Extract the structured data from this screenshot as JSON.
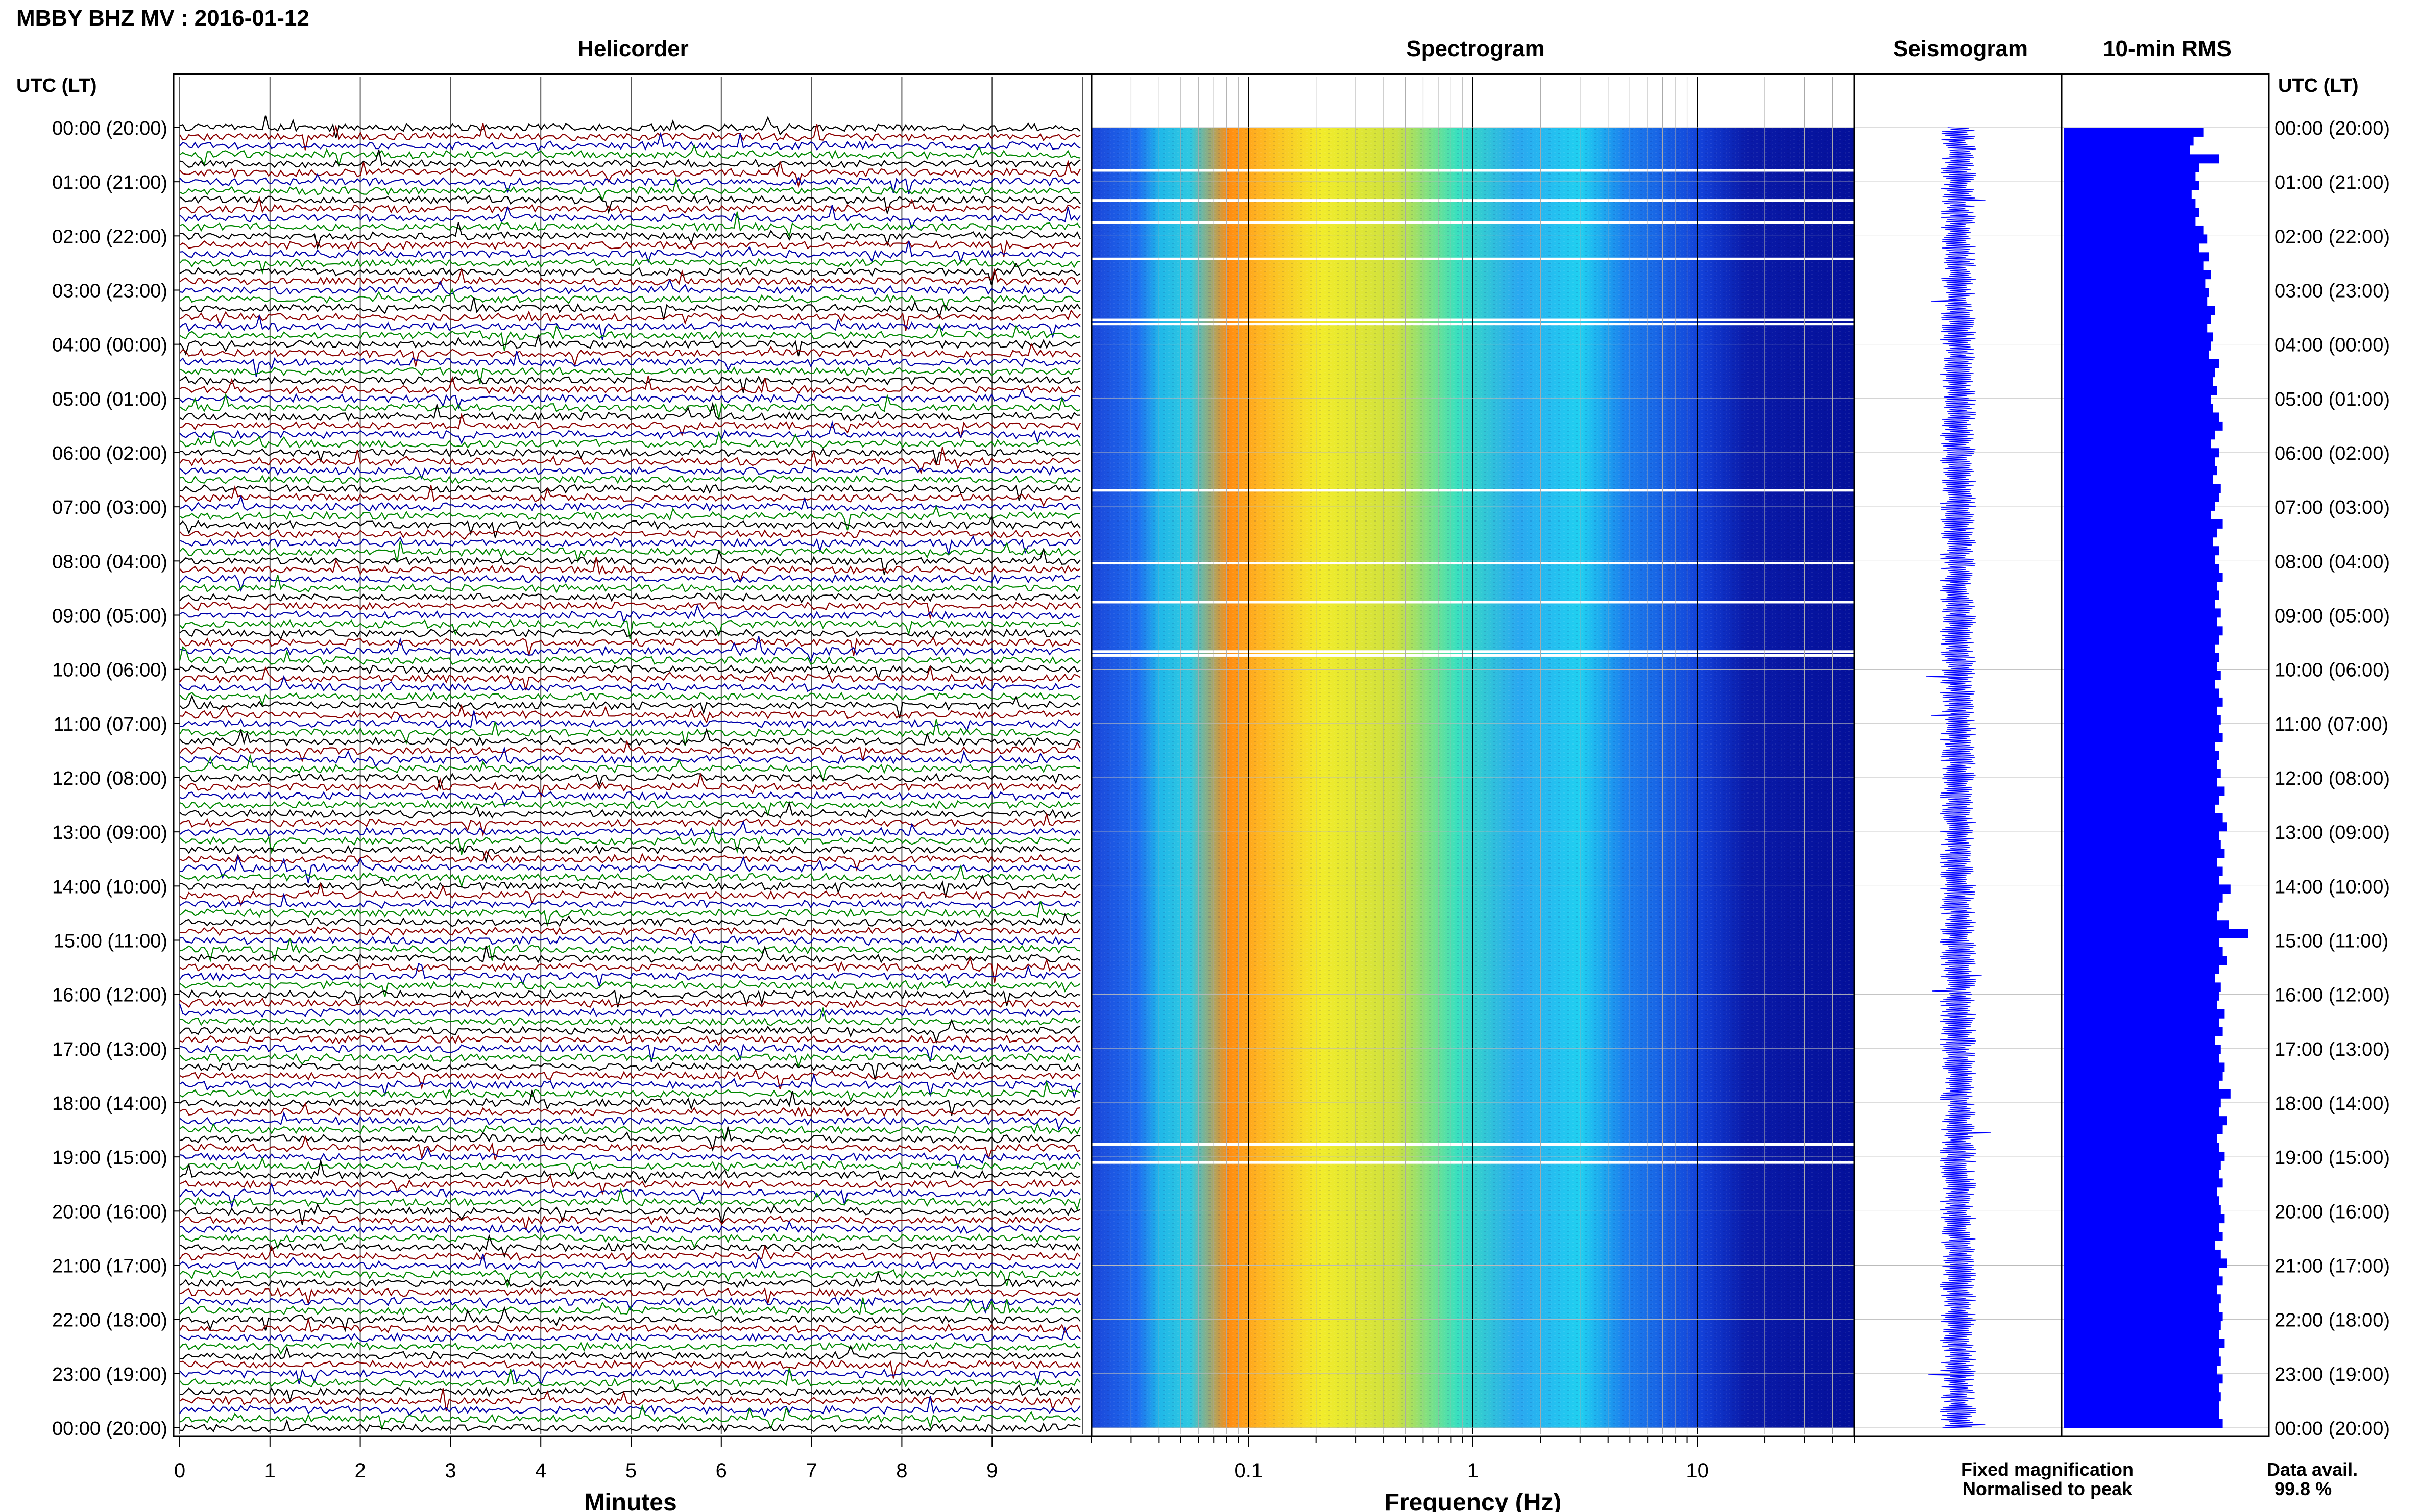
{
  "header": {
    "title": "MBBY BHZ MV : 2016-01-12",
    "utc_label": "UTC (LT)",
    "utc_label_right": "UTC (LT)"
  },
  "panels": {
    "helicorder": "Helicorder",
    "spectrogram": "Spectrogram",
    "seismogram": "Seismogram",
    "rms": "10-min RMS"
  },
  "legend": {
    "fixed": "Fixed magnification",
    "normalised": "Normalised to peak",
    "fixed_color": "#0000ff",
    "normalised_color": "#ff0000"
  },
  "data_avail": {
    "label": "Data avail.",
    "value": "99.8 %"
  },
  "colors": {
    "trace_cycle": [
      "#000000",
      "#8b0000",
      "#0000aa",
      "#008800"
    ],
    "seismogram": "#0000ff",
    "rms_bar": "#0000ff",
    "grid": "#999999"
  },
  "chart_data": [
    {
      "type": "line",
      "name": "helicorder",
      "title": "Helicorder",
      "xlabel": "Minutes",
      "x_ticks": [
        "0",
        "1",
        "2",
        "3",
        "4",
        "5",
        "6",
        "7",
        "8",
        "9"
      ],
      "xlim": [
        0,
        10
      ],
      "y_ticks": [
        "00:00 (20:00)",
        "01:00 (21:00)",
        "02:00 (22:00)",
        "03:00 (23:00)",
        "04:00 (00:00)",
        "05:00 (01:00)",
        "06:00 (02:00)",
        "07:00 (03:00)",
        "08:00 (04:00)",
        "09:00 (05:00)",
        "10:00 (06:00)",
        "11:00 (07:00)",
        "12:00 (08:00)",
        "13:00 (09:00)",
        "14:00 (10:00)",
        "15:00 (11:00)",
        "16:00 (12:00)",
        "17:00 (13:00)",
        "18:00 (14:00)",
        "19:00 (15:00)",
        "20:00 (16:00)",
        "21:00 (17:00)",
        "22:00 (18:00)",
        "23:00 (19:00)",
        "00:00 (20:00)"
      ],
      "lines_per_hour": 6
    },
    {
      "type": "heatmap",
      "name": "spectrogram",
      "title": "Spectrogram",
      "xlabel": "Frequency (Hz)",
      "x_scale": "log",
      "xlim": [
        0.02,
        50
      ],
      "x_ticks": [
        "0.1",
        "1",
        "10"
      ],
      "x_tick_values": [
        0.1,
        1,
        10
      ]
    },
    {
      "type": "line",
      "name": "seismogram",
      "title": "Seismogram"
    },
    {
      "type": "bar",
      "name": "rms",
      "title": "10-min RMS",
      "values": [
        0.72,
        0.67,
        0.65,
        0.8,
        0.7,
        0.68,
        0.7,
        0.66,
        0.68,
        0.7,
        0.68,
        0.72,
        0.74,
        0.7,
        0.75,
        0.72,
        0.76,
        0.73,
        0.75,
        0.74,
        0.78,
        0.76,
        0.74,
        0.77,
        0.76,
        0.75,
        0.8,
        0.78,
        0.77,
        0.79,
        0.76,
        0.77,
        0.8,
        0.82,
        0.78,
        0.76,
        0.8,
        0.78,
        0.79,
        0.77,
        0.81,
        0.8,
        0.78,
        0.76,
        0.82,
        0.79,
        0.77,
        0.8,
        0.78,
        0.8,
        0.82,
        0.79,
        0.8,
        0.78,
        0.81,
        0.79,
        0.82,
        0.8,
        0.78,
        0.8,
        0.79,
        0.81,
        0.78,
        0.8,
        0.82,
        0.79,
        0.81,
        0.8,
        0.82,
        0.78,
        0.8,
        0.79,
        0.81,
        0.79,
        0.83,
        0.8,
        0.78,
        0.82,
        0.84,
        0.8,
        0.81,
        0.83,
        0.79,
        0.82,
        0.8,
        0.86,
        0.82,
        0.8,
        0.79,
        0.85,
        0.95,
        0.8,
        0.82,
        0.84,
        0.8,
        0.78,
        0.81,
        0.8,
        0.79,
        0.83,
        0.8,
        0.82,
        0.78,
        0.81,
        0.8,
        0.83,
        0.82,
        0.8,
        0.86,
        0.81,
        0.8,
        0.84,
        0.82,
        0.79,
        0.8,
        0.83,
        0.81,
        0.8,
        0.82,
        0.79,
        0.8,
        0.81,
        0.83,
        0.8,
        0.82,
        0.78,
        0.81,
        0.84,
        0.8,
        0.82,
        0.79,
        0.81,
        0.8,
        0.82,
        0.81,
        0.8,
        0.83,
        0.8,
        0.81,
        0.79,
        0.82,
        0.8,
        0.81,
        0.8,
        0.8,
        0.82
      ]
    }
  ]
}
